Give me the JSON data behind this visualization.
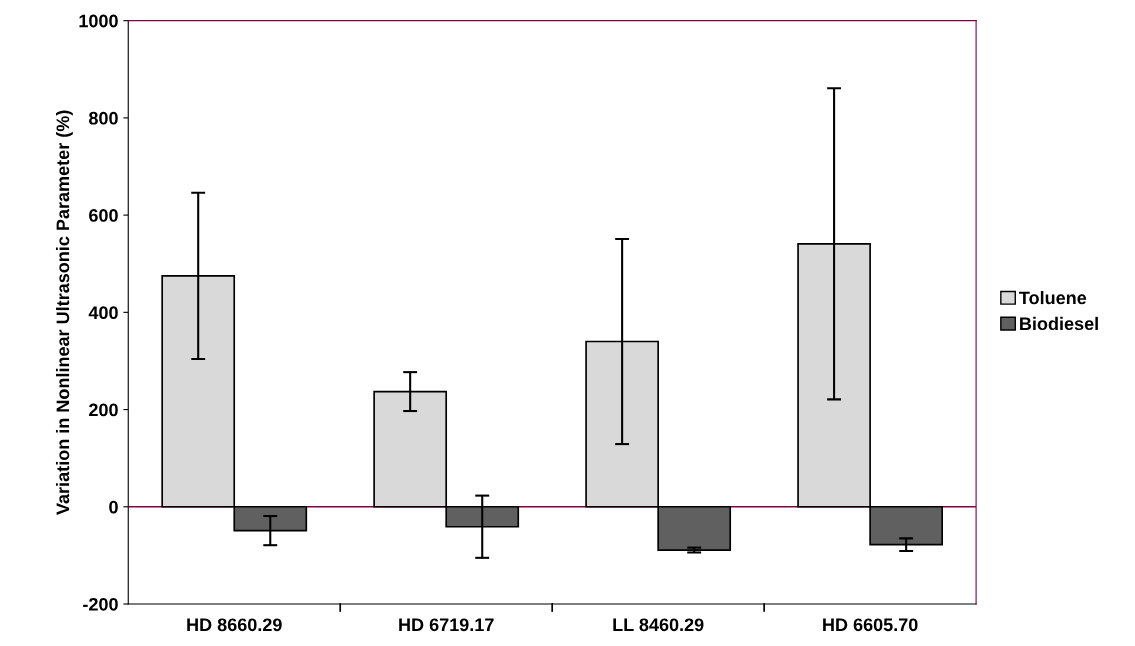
{
  "chart_data": {
    "type": "bar",
    "ylabel": "Variation in Nonlinear Ultrasonic Parameter (%)",
    "categories": [
      "HD 8660.29",
      "HD 6719.17",
      "LL 8460.29",
      "HD 6605.70"
    ],
    "series": [
      {
        "name": "Toluene",
        "color": "#d9d9d9",
        "values": [
          475,
          237,
          340,
          541
        ],
        "errors": [
          171,
          40,
          211,
          320
        ]
      },
      {
        "name": "Biodiesel",
        "color": "#606060",
        "values": [
          -49,
          -41,
          -89,
          -78
        ],
        "errors": [
          30,
          64,
          5,
          13
        ]
      }
    ],
    "ylim": [
      -200,
      1000
    ],
    "yticks": [
      -200,
      0,
      200,
      400,
      600,
      800,
      1000
    ],
    "ref_lines": [
      {
        "axis": "y",
        "value": 0,
        "color": "#800040"
      }
    ],
    "grid": false,
    "legend": "right"
  }
}
